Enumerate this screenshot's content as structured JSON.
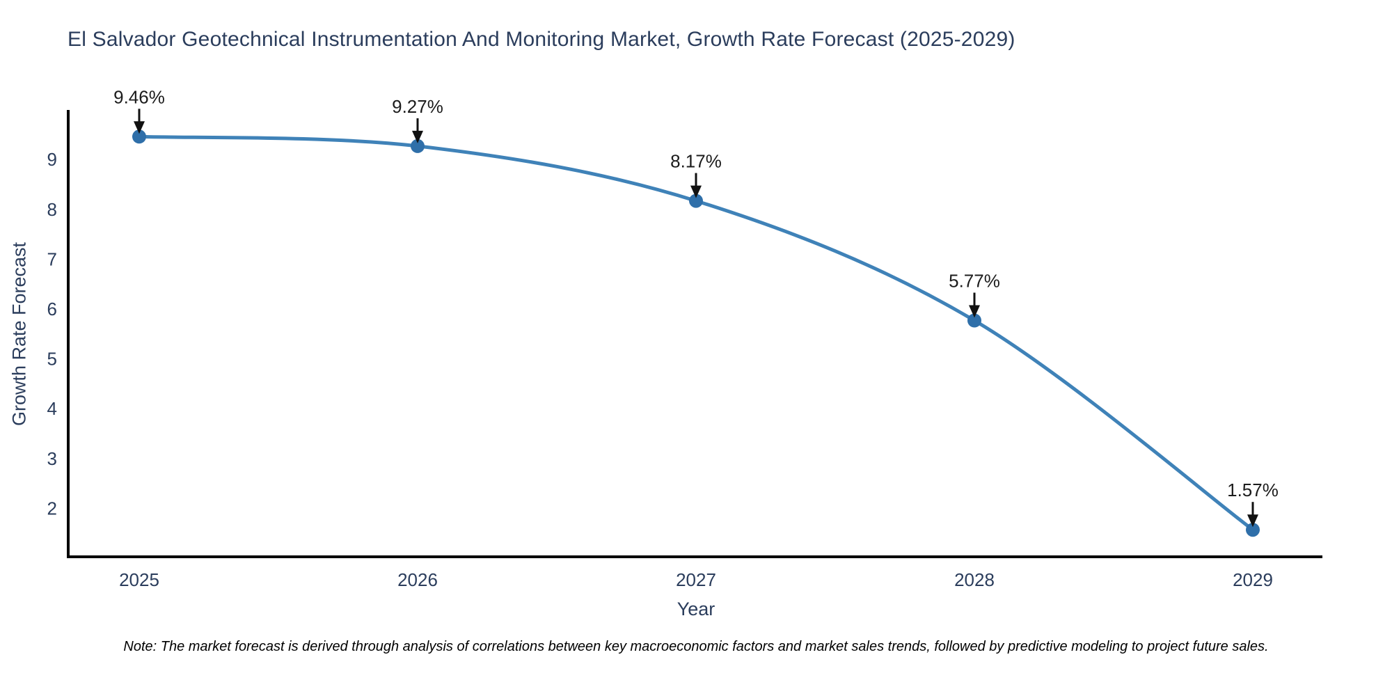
{
  "title": "El Salvador Geotechnical Instrumentation And Monitoring Market, Growth Rate Forecast (2025-2029)",
  "note": "Note: The market forecast is derived through analysis of correlations between key macroeconomic factors and market sales trends, followed by predictive modeling to project future sales.",
  "chart_data": {
    "type": "line",
    "title": "El Salvador Geotechnical Instrumentation And Monitoring Market, Growth Rate Forecast (2025-2029)",
    "x": [
      "2025",
      "2026",
      "2027",
      "2028",
      "2029"
    ],
    "values": [
      9.46,
      9.27,
      8.17,
      5.77,
      1.57
    ],
    "point_labels": [
      "9.46%",
      "9.27%",
      "8.17%",
      "5.77%",
      "1.57%"
    ],
    "xlabel": "Year",
    "ylabel": "Growth Rate Forecast",
    "yticks": [
      2,
      3,
      4,
      5,
      6,
      7,
      8,
      9
    ],
    "ylim": [
      1.0,
      10.0
    ],
    "grid": false,
    "legend": false,
    "smooth": true,
    "line_color": "#3f82b8",
    "marker_color": "#2f6fa9",
    "axis_color": "#000000",
    "tick_color": "#2b3d5c",
    "annotation_color": "#1c1c1c",
    "background_color": "#ffffff"
  }
}
